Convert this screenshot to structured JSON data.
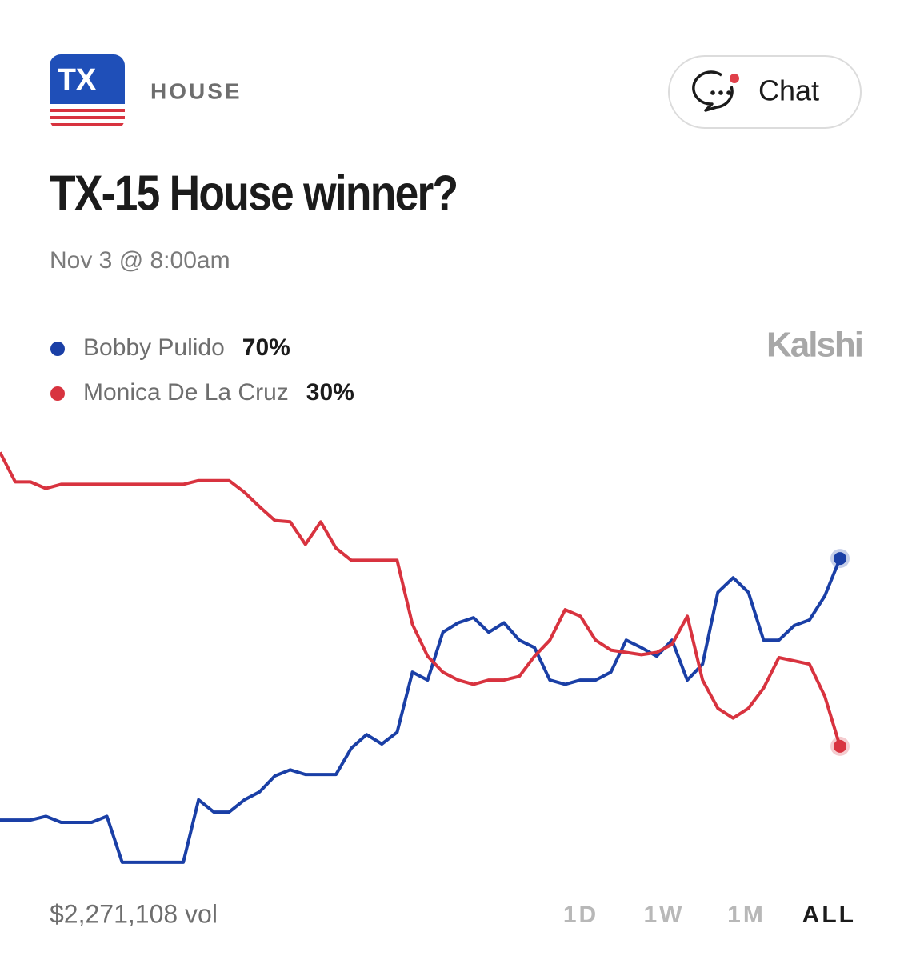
{
  "header": {
    "logo": "TX",
    "category": "HOUSE",
    "chat": "Chat",
    "title": "TX-15 House winner?",
    "date": "Nov 3 @ 8:00am",
    "brand": "Kalshi"
  },
  "chart_data": {
    "type": "line",
    "ylim": [
      0,
      100
    ],
    "series": [
      {
        "name": "Bobby Pulido",
        "color": "#1a3fa6",
        "chance": {
          "value": 70,
          "label": "70%"
        },
        "values": [
          14.3,
          14.3,
          14.3,
          15.1,
          13.8,
          13.8,
          13.8,
          15.1,
          5.3,
          5.3,
          5.3,
          5.3,
          5.3,
          18.6,
          16,
          16,
          18.6,
          20.3,
          23.7,
          25,
          24,
          24,
          24,
          29.6,
          32.5,
          30.5,
          33,
          45.8,
          44.1,
          54.3,
          56.3,
          57.4,
          54.3,
          56.3,
          52.6,
          51,
          44.1,
          43.2,
          44.1,
          44.1,
          45.8,
          52.6,
          51,
          49.2,
          52.6,
          44.1,
          47.5,
          62.8,
          65.9,
          62.8,
          52.6,
          52.6,
          55.7,
          56.9,
          62,
          70
        ]
      },
      {
        "name": "Monica De La Cruz",
        "color": "#d8333f",
        "chance": {
          "value": 30,
          "label": "30%"
        },
        "values": [
          92.6,
          86.3,
          86.3,
          84.9,
          85.8,
          85.8,
          85.8,
          85.8,
          85.8,
          85.8,
          85.8,
          85.8,
          85.8,
          86.6,
          86.6,
          86.6,
          84.1,
          81,
          78.1,
          77.8,
          73,
          77.8,
          72.2,
          69.6,
          69.6,
          69.6,
          69.6,
          56,
          49.2,
          45.8,
          44.1,
          43.2,
          44.1,
          44.1,
          44.9,
          49.2,
          52.6,
          59.1,
          57.7,
          52.6,
          50.5,
          50,
          49.5,
          50,
          51.7,
          57.7,
          44.1,
          38.1,
          36,
          38.1,
          42.4,
          48.9,
          48.2,
          47.5,
          40.7,
          30
        ]
      }
    ]
  },
  "footer": {
    "volume": "$2,271,108 vol",
    "ranges": [
      "1D",
      "1W",
      "1M",
      "ALL"
    ],
    "active_range": "ALL"
  }
}
